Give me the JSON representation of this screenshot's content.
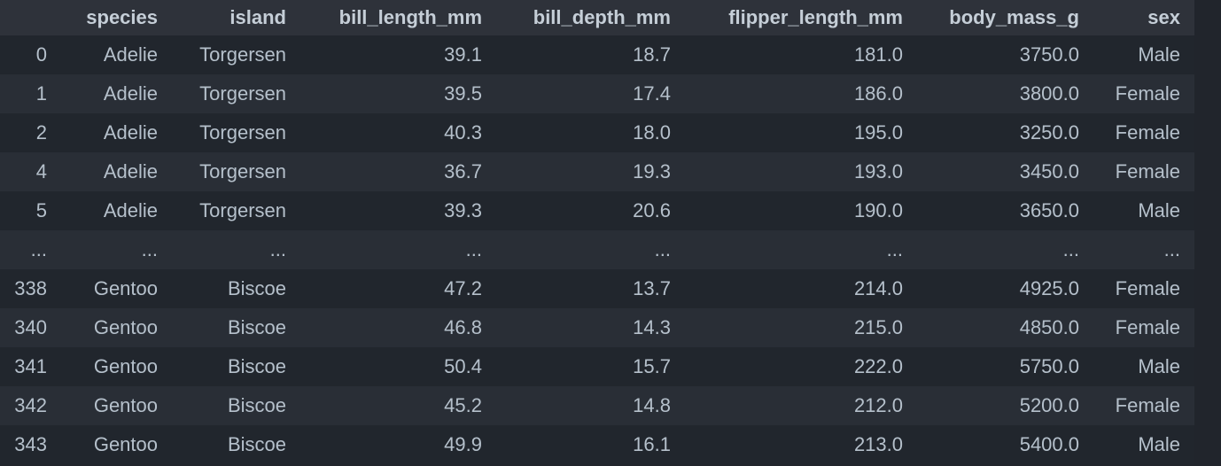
{
  "table": {
    "columns": [
      "",
      "species",
      "island",
      "bill_length_mm",
      "bill_depth_mm",
      "flipper_length_mm",
      "body_mass_g",
      "sex"
    ],
    "rows": [
      [
        "0",
        "Adelie",
        "Torgersen",
        "39.1",
        "18.7",
        "181.0",
        "3750.0",
        "Male"
      ],
      [
        "1",
        "Adelie",
        "Torgersen",
        "39.5",
        "17.4",
        "186.0",
        "3800.0",
        "Female"
      ],
      [
        "2",
        "Adelie",
        "Torgersen",
        "40.3",
        "18.0",
        "195.0",
        "3250.0",
        "Female"
      ],
      [
        "4",
        "Adelie",
        "Torgersen",
        "36.7",
        "19.3",
        "193.0",
        "3450.0",
        "Female"
      ],
      [
        "5",
        "Adelie",
        "Torgersen",
        "39.3",
        "20.6",
        "190.0",
        "3650.0",
        "Male"
      ],
      [
        "...",
        "...",
        "...",
        "...",
        "...",
        "...",
        "...",
        "..."
      ],
      [
        "338",
        "Gentoo",
        "Biscoe",
        "47.2",
        "13.7",
        "214.0",
        "4925.0",
        "Female"
      ],
      [
        "340",
        "Gentoo",
        "Biscoe",
        "46.8",
        "14.3",
        "215.0",
        "4850.0",
        "Female"
      ],
      [
        "341",
        "Gentoo",
        "Biscoe",
        "50.4",
        "15.7",
        "222.0",
        "5750.0",
        "Male"
      ],
      [
        "342",
        "Gentoo",
        "Biscoe",
        "45.2",
        "14.8",
        "212.0",
        "5200.0",
        "Female"
      ],
      [
        "343",
        "Gentoo",
        "Biscoe",
        "49.9",
        "16.1",
        "213.0",
        "5400.0",
        "Male"
      ]
    ]
  },
  "colors": {
    "background": "#21252c",
    "header_bg": "#2e323a",
    "row_bg_a": "#21262d",
    "row_bg_b": "#292e36",
    "text": "#b5c0cb"
  }
}
